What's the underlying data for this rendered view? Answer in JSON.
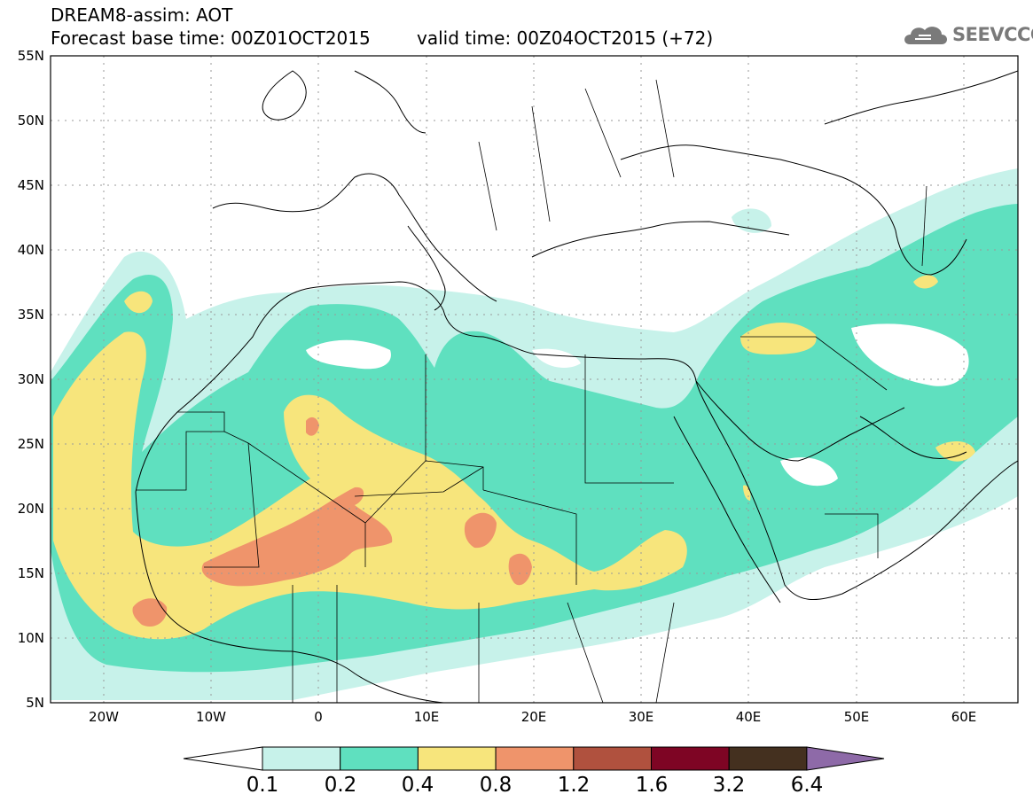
{
  "header": {
    "line1": "DREAM8-assim: AOT",
    "line2a": "Forecast base time: 00Z01OCT2015",
    "line2b": "valid time: 00Z04OCT2015 (+72)",
    "logo": "SEEVCCC"
  },
  "axes": {
    "lat_labels": [
      "55N",
      "50N",
      "45N",
      "40N",
      "35N",
      "30N",
      "25N",
      "20N",
      "15N",
      "10N",
      "5N"
    ],
    "lon_labels": [
      "20W",
      "10W",
      "0",
      "10E",
      "20E",
      "30E",
      "40E",
      "50E",
      "60E"
    ],
    "lat_range": [
      5,
      55
    ],
    "lon_range": [
      -25,
      65
    ]
  },
  "colorbar": {
    "labels": [
      "0.1",
      "0.2",
      "0.4",
      "0.8",
      "1.2",
      "1.6",
      "3.2",
      "6.4"
    ],
    "colors": [
      "#c7f2ea",
      "#5fe0bf",
      "#f7e57c",
      "#ef946b",
      "#b0513e",
      "#7e0524",
      "#44301f",
      "#8e6aa8"
    ]
  },
  "map_colors": {
    "land_border": "#000000",
    "grid": "#9a9a9a"
  }
}
